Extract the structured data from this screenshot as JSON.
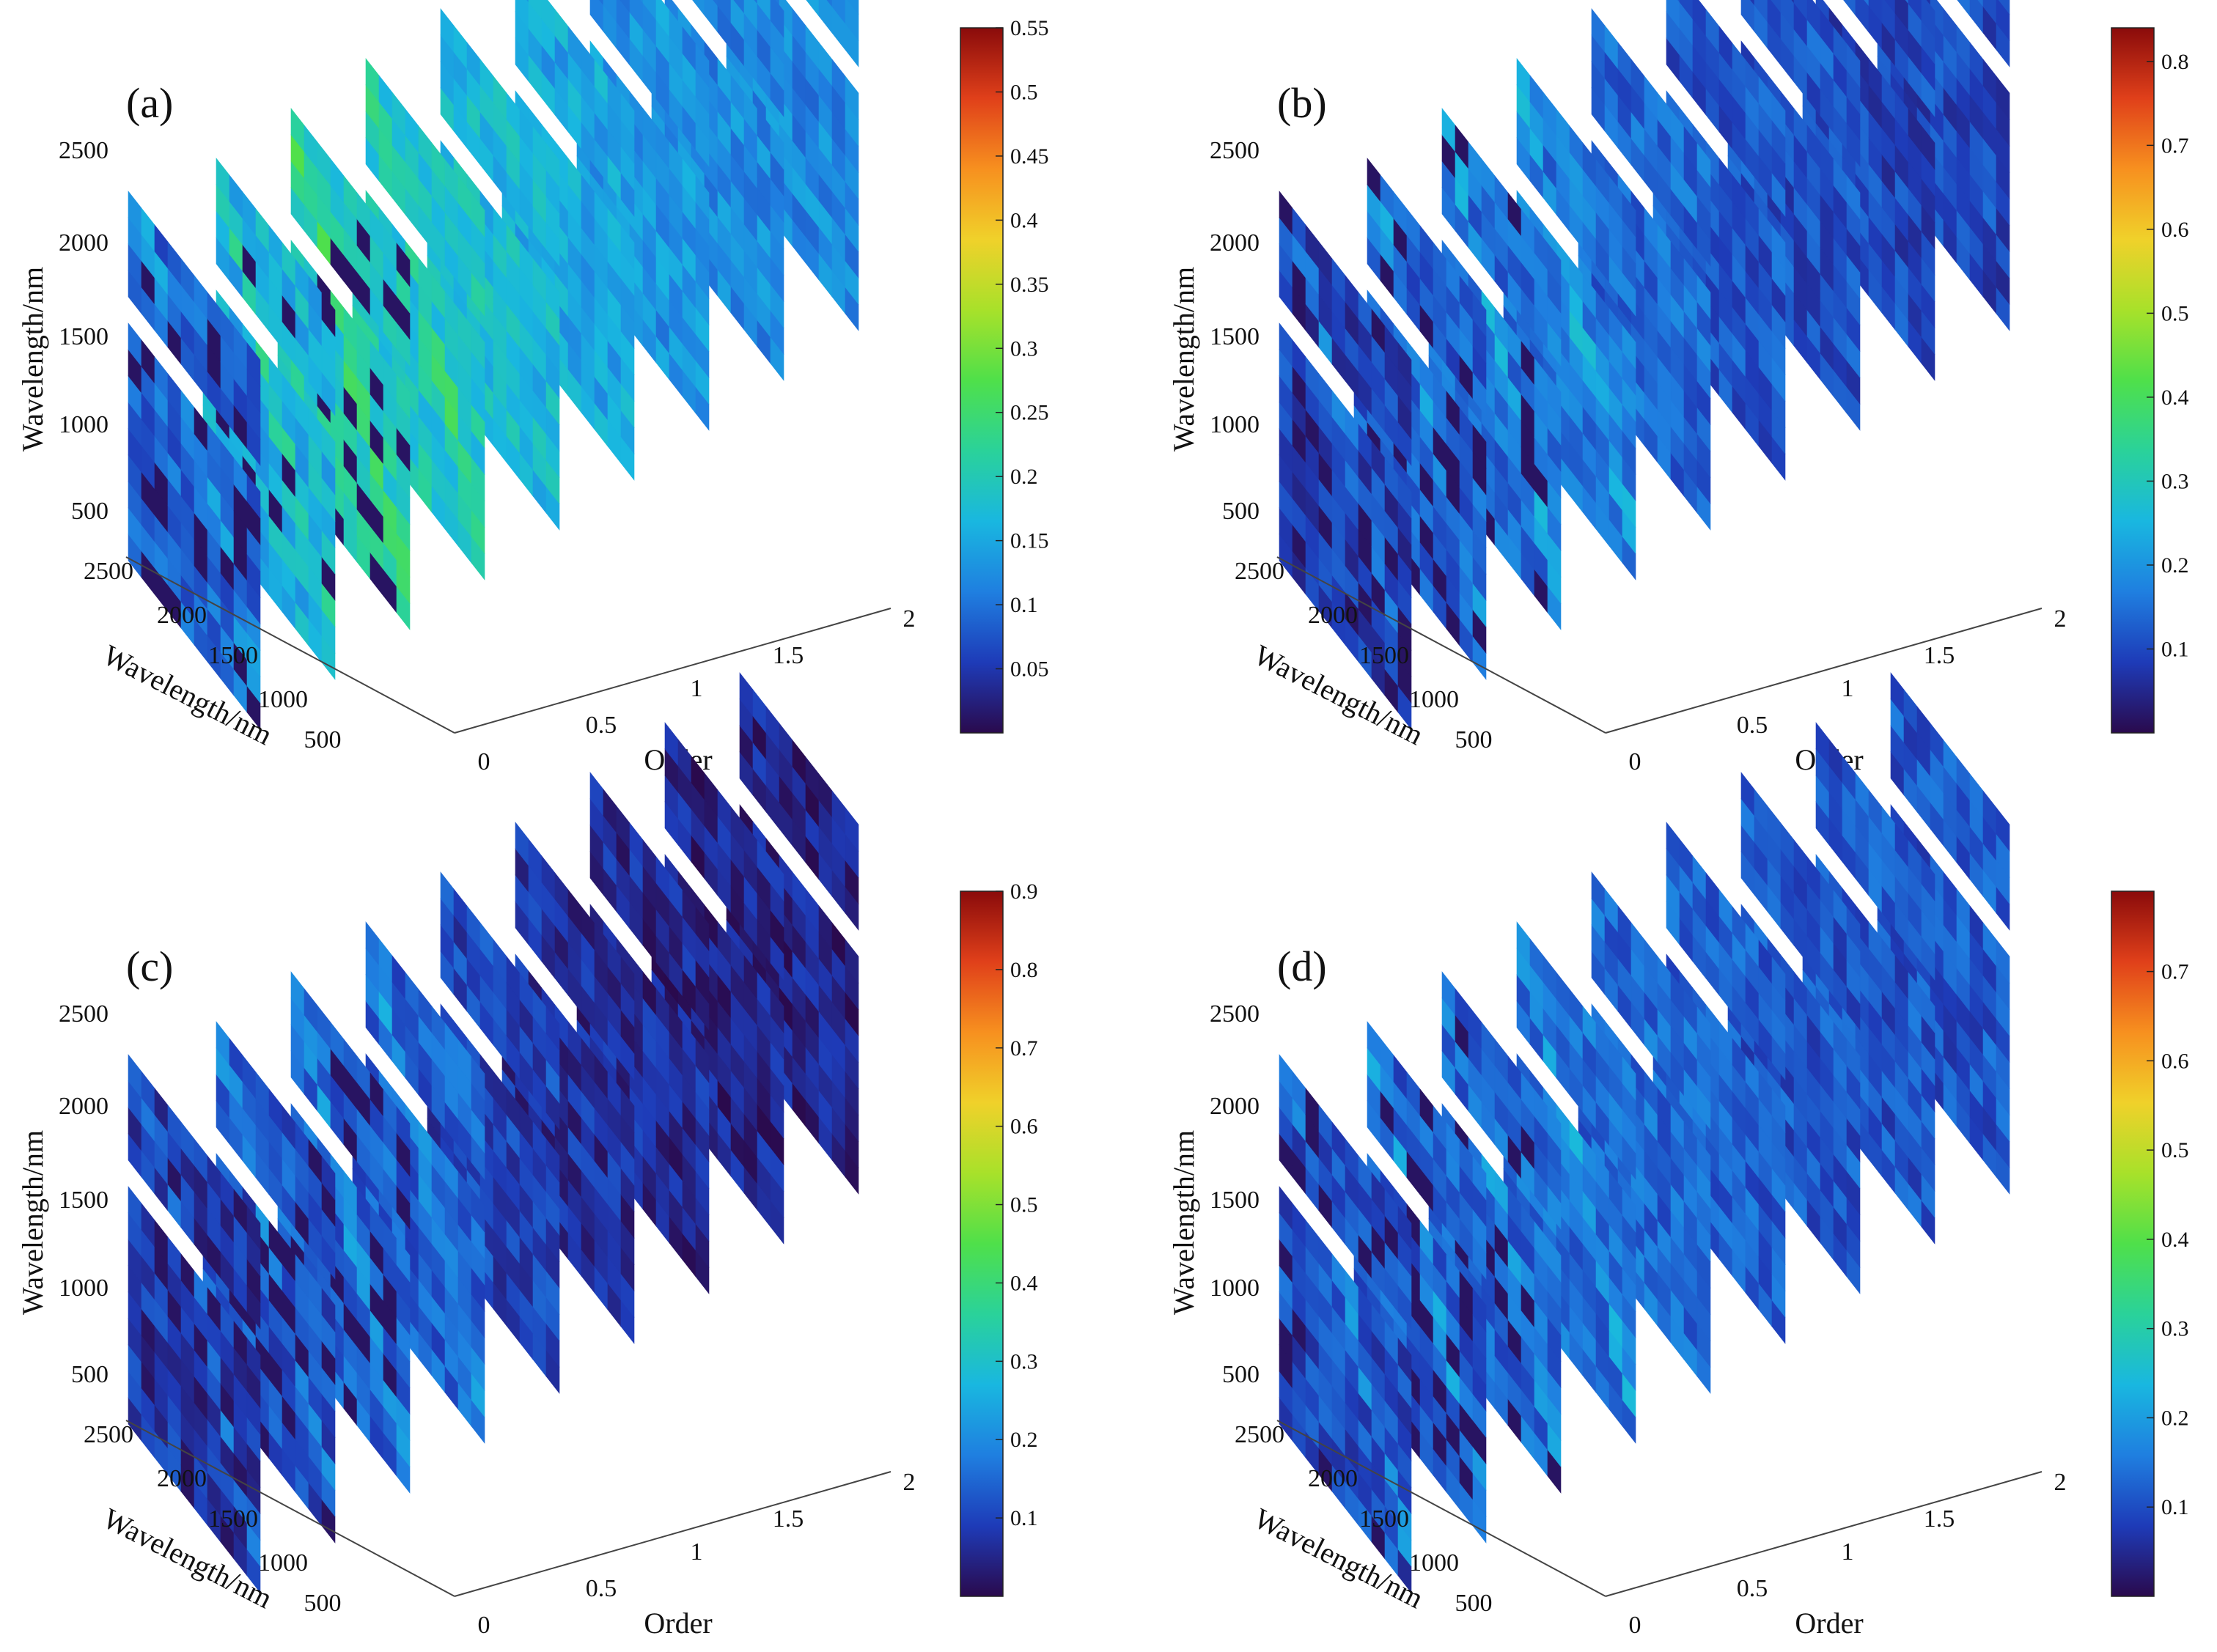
{
  "figure": {
    "description_free": true,
    "chart_data": [
      {
        "type": "heatmap",
        "panel": "(a)",
        "title": "",
        "xlabel": "Wavelength/nm",
        "ylabel": "Wavelength/nm",
        "zlabel": "Order",
        "wavelength_ticks": [
          "500",
          "1000",
          "1500",
          "2000",
          "2500"
        ],
        "left_wavelength_ticks": [
          "2500",
          "2000",
          "1500",
          "1000",
          "500"
        ],
        "order_ticks": [
          "0",
          "0.5",
          "1",
          "1.5",
          "2"
        ],
        "orders": [
          0,
          0.25,
          0.5,
          0.75,
          1.0,
          1.25,
          1.5,
          1.75,
          2.0
        ],
        "slice_mean_level": [
          0.09,
          0.16,
          0.2,
          0.19,
          0.17,
          0.15,
          0.13,
          0.12,
          0.12
        ],
        "colorbar_ticks": [
          "0.05",
          "0.1",
          "0.15",
          "0.2",
          "0.25",
          "0.3",
          "0.35",
          "0.4",
          "0.45",
          "0.5",
          "0.55"
        ],
        "colorbar_range": [
          0,
          0.55
        ]
      },
      {
        "type": "heatmap",
        "panel": "(b)",
        "title": "",
        "xlabel": "Wavelength/nm",
        "ylabel": "Wavelength/nm",
        "zlabel": "Order",
        "wavelength_ticks": [
          "500",
          "1000",
          "1500",
          "2000",
          "2500"
        ],
        "left_wavelength_ticks": [
          "2500",
          "2000",
          "1500",
          "1000",
          "500"
        ],
        "order_ticks": [
          "0",
          "0.5",
          "1",
          "1.5",
          "2"
        ],
        "orders": [
          0,
          0.25,
          0.5,
          0.75,
          1.0,
          1.25,
          1.5,
          1.75,
          2.0
        ],
        "slice_mean_level": [
          0.09,
          0.13,
          0.15,
          0.16,
          0.14,
          0.12,
          0.11,
          0.1,
          0.1
        ],
        "colorbar_ticks": [
          "0.1",
          "0.2",
          "0.3",
          "0.4",
          "0.5",
          "0.6",
          "0.7",
          "0.8"
        ],
        "colorbar_range": [
          0,
          0.84
        ]
      },
      {
        "type": "heatmap",
        "panel": "(c)",
        "title": "",
        "xlabel": "Wavelength/nm",
        "ylabel": "Wavelength/nm",
        "zlabel": "Order",
        "wavelength_ticks": [
          "500",
          "1000",
          "1500",
          "2000",
          "2500"
        ],
        "left_wavelength_ticks": [
          "2500",
          "2000",
          "1500",
          "1000",
          "500"
        ],
        "order_ticks": [
          "0",
          "0.5",
          "1",
          "1.5",
          "2"
        ],
        "orders": [
          0,
          0.25,
          0.5,
          0.75,
          1.0,
          1.25,
          1.5,
          1.75,
          2.0
        ],
        "slice_mean_level": [
          0.08,
          0.12,
          0.14,
          0.14,
          0.1,
          0.07,
          0.06,
          0.05,
          0.05
        ],
        "colorbar_ticks": [
          "0.1",
          "0.2",
          "0.3",
          "0.4",
          "0.5",
          "0.6",
          "0.7",
          "0.8",
          "0.9"
        ],
        "colorbar_range": [
          0,
          0.9
        ]
      },
      {
        "type": "heatmap",
        "panel": "(d)",
        "title": "",
        "xlabel": "Wavelength/nm",
        "ylabel": "Wavelength/nm",
        "zlabel": "Order",
        "wavelength_ticks": [
          "500",
          "1000",
          "1500",
          "2000",
          "2500"
        ],
        "left_wavelength_ticks": [
          "2500",
          "2000",
          "1500",
          "1000",
          "500"
        ],
        "order_ticks": [
          "0",
          "0.5",
          "1",
          "1.5",
          "2"
        ],
        "orders": [
          0,
          0.25,
          0.5,
          0.75,
          1.0,
          1.25,
          1.5,
          1.75,
          2.0
        ],
        "slice_mean_level": [
          0.1,
          0.12,
          0.13,
          0.14,
          0.13,
          0.12,
          0.11,
          0.11,
          0.11
        ],
        "colorbar_ticks": [
          "0.1",
          "0.2",
          "0.3",
          "0.4",
          "0.5",
          "0.6",
          "0.7"
        ],
        "colorbar_range": [
          0,
          0.79
        ]
      }
    ],
    "colormap": [
      "#2a0a4d",
      "#1e3bb8",
      "#1f7fe0",
      "#19b7e0",
      "#2ad29a",
      "#4fe04a",
      "#a8e12a",
      "#f0d12a",
      "#f7901f",
      "#e0401a",
      "#8a0b0b"
    ]
  }
}
